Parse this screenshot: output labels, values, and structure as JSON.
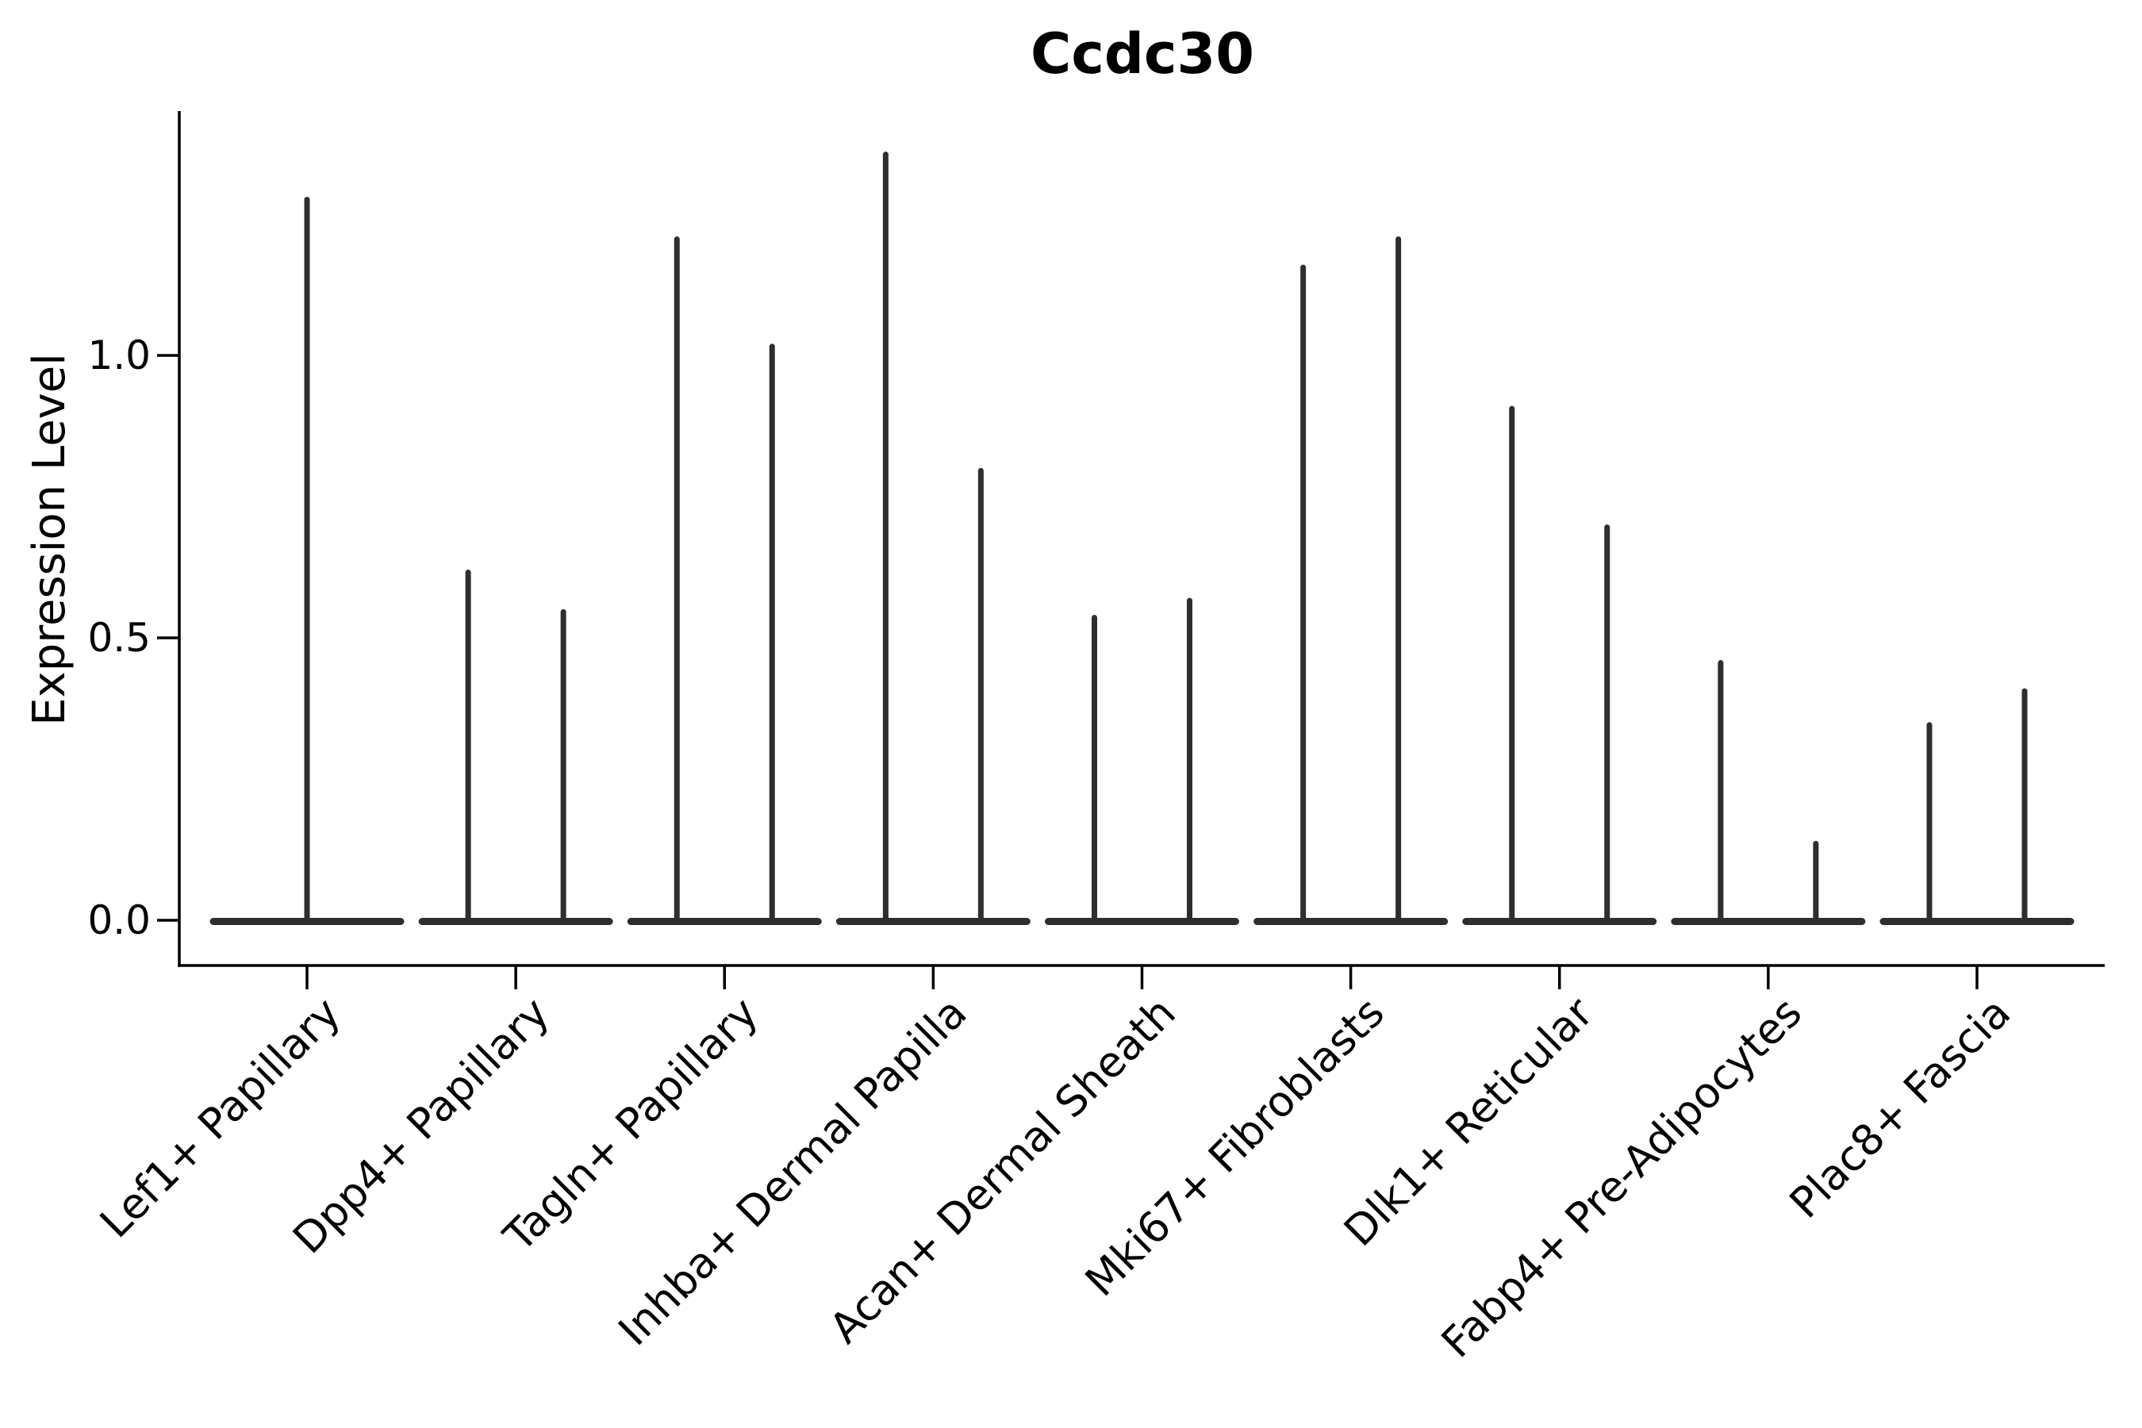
{
  "title": "Ccdc30",
  "y_axis": {
    "label": "Expression Level",
    "tick_labels": [
      "0.0",
      "0.5",
      "1.0"
    ]
  },
  "chart_data": {
    "type": "violin",
    "title": "Ccdc30",
    "xlabel": "",
    "ylabel": "Expression Level",
    "ylim": [
      -0.08,
      1.43
    ],
    "yticks": [
      0.0,
      0.5,
      1.0
    ],
    "grid": false,
    "legend": "none",
    "orientation": "vertical",
    "description": "Single-cell gene expression violin plot. Each violin collapses to a flat horizontal base at expression 0 with a thin vertical spike reaching the maximum expression value. The first category has one wide violin; all other categories have two adjacent violins.",
    "baseline_value": 0.0,
    "categories": [
      "Lef1+ Papillary",
      "Dpp4+ Papillary",
      "Tagln+ Papillary",
      "Inhba+ Dermal Papilla",
      "Acan+ Dermal Sheath",
      "Mki67+ Fibroblasts",
      "Dlk1+ Reticular",
      "Fabp4+ Pre-Adipocytes",
      "Plac8+ Fascia"
    ],
    "series": [
      {
        "category": "Lef1+ Papillary",
        "violin_max_values": [
          1.28
        ]
      },
      {
        "category": "Dpp4+ Papillary",
        "violin_max_values": [
          0.62,
          0.55
        ]
      },
      {
        "category": "Tagln+ Papillary",
        "violin_max_values": [
          1.21,
          1.02
        ]
      },
      {
        "category": "Inhba+ Dermal Papilla",
        "violin_max_values": [
          1.36,
          0.8
        ]
      },
      {
        "category": "Acan+ Dermal Sheath",
        "violin_max_values": [
          0.54,
          0.57
        ]
      },
      {
        "category": "Mki67+ Fibroblasts",
        "violin_max_values": [
          1.16,
          1.21
        ]
      },
      {
        "category": "Dlk1+ Reticular",
        "violin_max_values": [
          0.91,
          0.7
        ]
      },
      {
        "category": "Fabp4+ Pre-Adipocytes",
        "violin_max_values": [
          0.46,
          0.14
        ]
      },
      {
        "category": "Plac8+ Fascia",
        "violin_max_values": [
          0.35,
          0.41
        ]
      }
    ]
  },
  "style": {
    "violin_color": "#2e2e2e",
    "axis_color": "#000000",
    "text_color": "#000000",
    "background": "#ffffff"
  }
}
